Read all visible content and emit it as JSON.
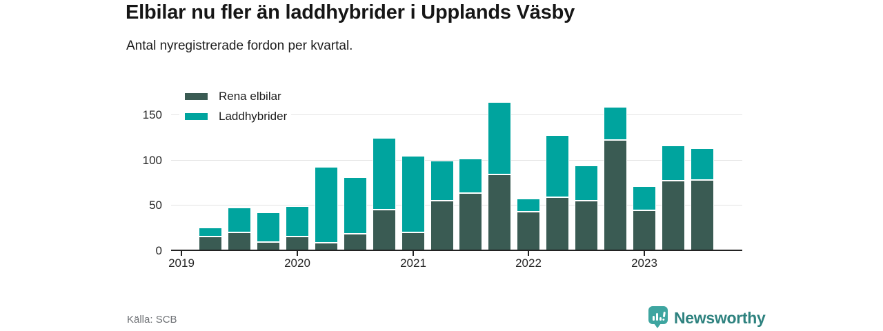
{
  "header": {
    "title": "Elbilar nu fler än laddhybrider i Upplands Väsby",
    "subtitle": "Antal nyregistrerade fordon per kvartal."
  },
  "footer": {
    "source": "Källa: SCB",
    "brand_name": "Newsworthy",
    "brand_icon": "newsworthy-bar-chart-bubble-icon",
    "brand_text_color": "#2e827f",
    "brand_icon_color": "#3ea5a0"
  },
  "chart_data": {
    "type": "bar",
    "stacked": true,
    "title": "Elbilar nu fler än laddhybrider i Upplands Väsby",
    "subtitle": "Antal nyregistrerade fordon per kvartal.",
    "x_quarters": [
      "2019K2",
      "2019K3",
      "2019K4",
      "2020K1",
      "2020K2",
      "2020K3",
      "2020K4",
      "2021K1",
      "2021K2",
      "2021K3",
      "2021K4",
      "2022K1",
      "2022K2",
      "2022K3",
      "2022K4",
      "2023K1",
      "2023K2",
      "2023K3"
    ],
    "x_tick_labels": [
      "2019",
      "2020",
      "2021",
      "2022",
      "2023"
    ],
    "series": [
      {
        "name": "Rena elbilar",
        "color": "#3a5b53",
        "values": [
          15,
          20,
          9,
          15,
          8,
          18,
          45,
          20,
          55,
          63,
          84,
          43,
          59,
          55,
          122,
          44,
          77,
          78
        ]
      },
      {
        "name": "Laddhybrider",
        "color": "#00a49e",
        "values": [
          10,
          27,
          33,
          34,
          84,
          63,
          79,
          84,
          44,
          38,
          80,
          14,
          68,
          39,
          36,
          27,
          39,
          35
        ]
      }
    ],
    "yticks": [
      0,
      50,
      100,
      150
    ],
    "ylim": [
      0,
      170
    ],
    "grid": "horizontal",
    "legend_position": "top-left",
    "gridline_color": "#e3e3e3",
    "axis_color": "#222222"
  }
}
